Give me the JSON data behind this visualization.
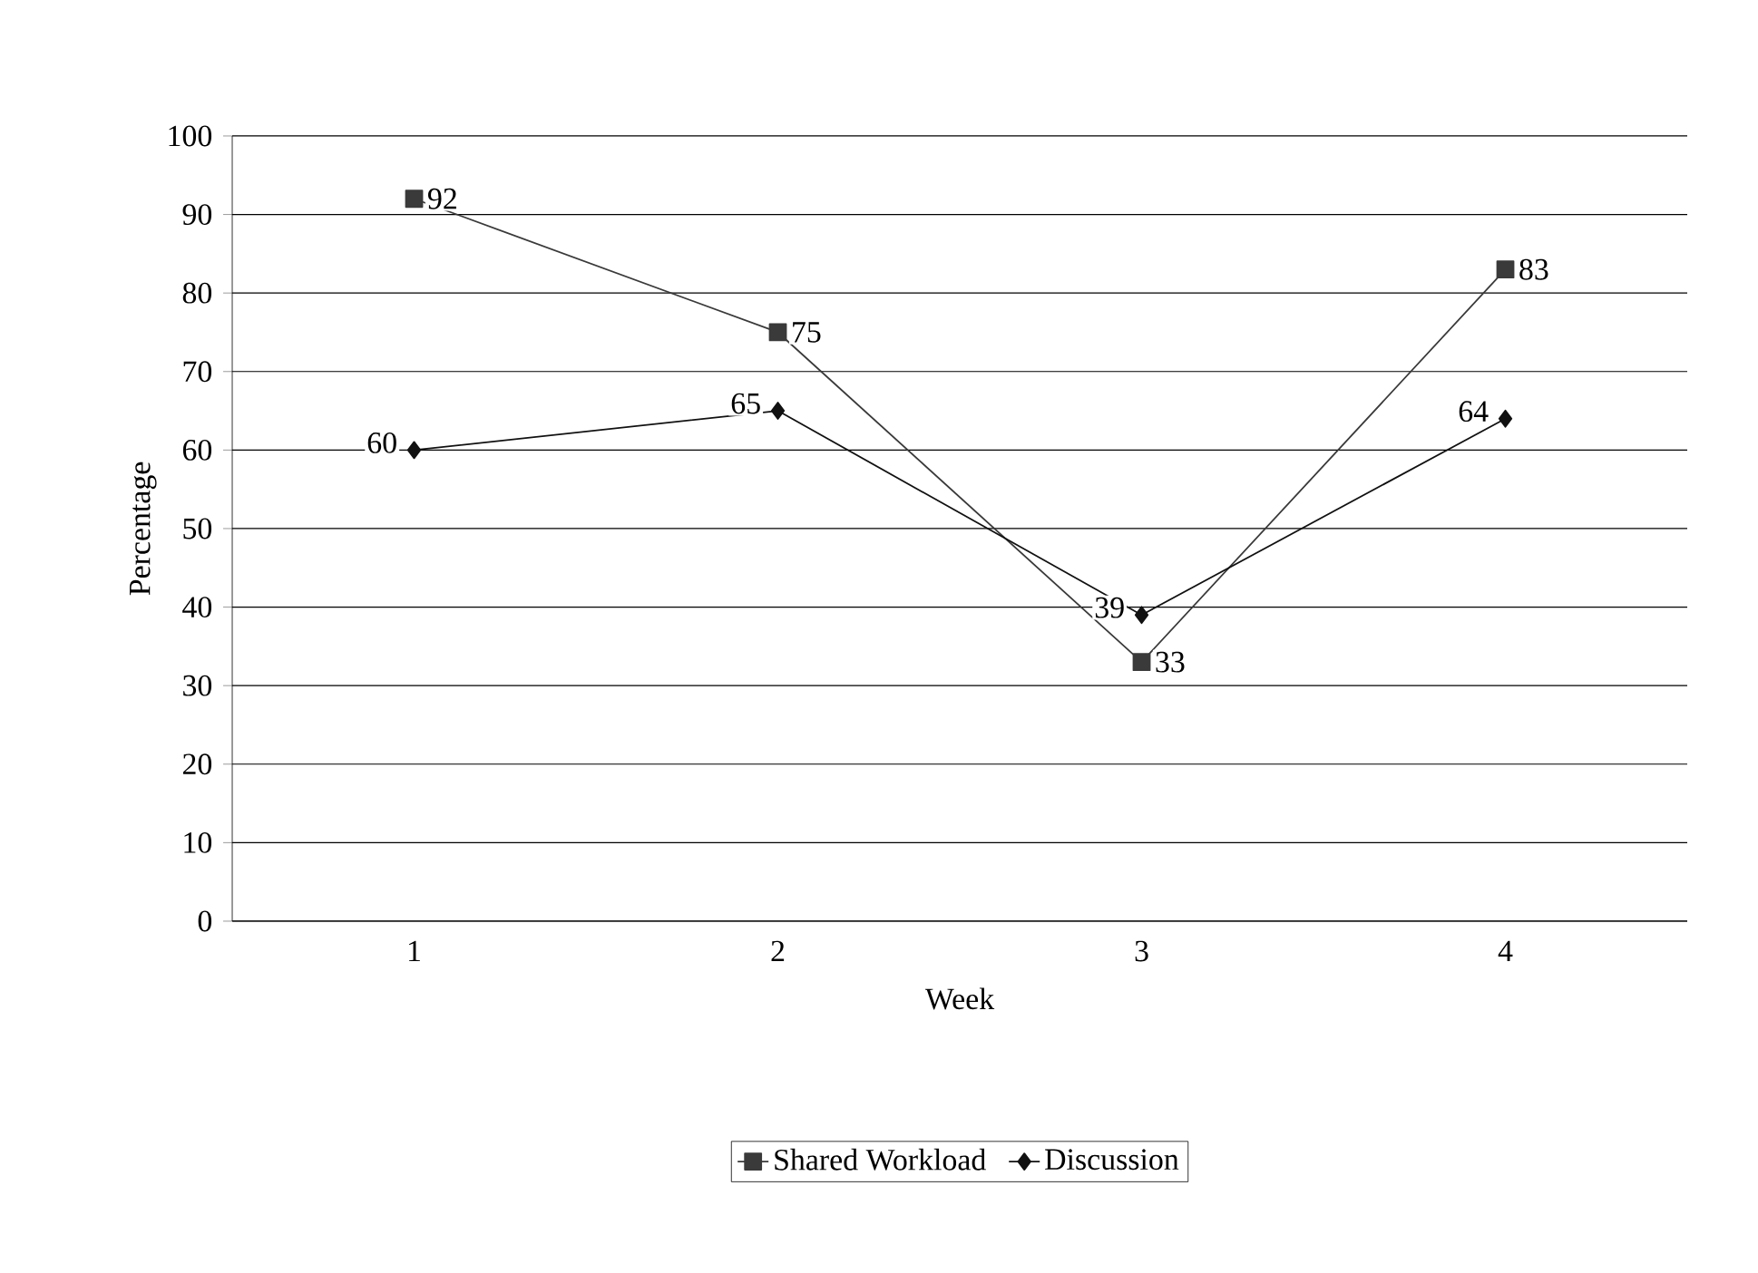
{
  "chart_data": {
    "type": "line",
    "xlabel": "Week",
    "ylabel": "Percentage",
    "categories": [
      "1",
      "2",
      "3",
      "4"
    ],
    "series": [
      {
        "name": "Shared Workload",
        "color": "#3a3a3a",
        "marker": "square",
        "values": [
          92,
          75,
          33,
          83
        ]
      },
      {
        "name": "Discussion",
        "color": "#111111",
        "marker": "diamond",
        "values": [
          60,
          65,
          39,
          64
        ]
      }
    ],
    "ylim": [
      0,
      100
    ],
    "yticks": [
      0,
      10,
      20,
      30,
      40,
      50,
      60,
      70,
      80,
      90,
      100
    ],
    "grid": "y",
    "legend": "bottom",
    "data_labels": true,
    "line_style": "solid"
  }
}
